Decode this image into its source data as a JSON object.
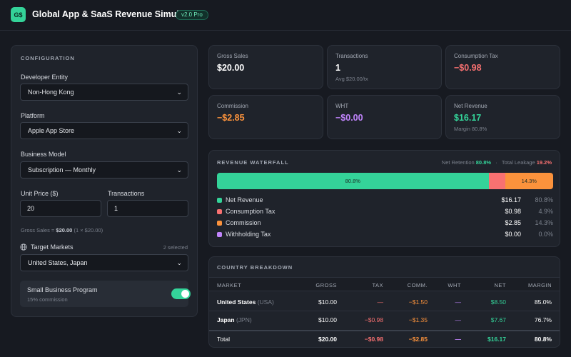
{
  "header": {
    "logo_text": "G$",
    "title": "Global App & SaaS Revenue Simulator",
    "version": "v2.0 Pro"
  },
  "config": {
    "section_title": "CONFIGURATION",
    "developer_entity_label": "Developer Entity",
    "developer_entity_value": "Non-Hong Kong",
    "platform_label": "Platform",
    "platform_value": "Apple App Store",
    "business_model_label": "Business Model",
    "business_model_value": "Subscription — Monthly",
    "unit_price_label": "Unit Price ($)",
    "unit_price_value": "20",
    "transactions_label": "Transactions",
    "transactions_value": "1",
    "gross_hint_prefix": "Gross Sales = ",
    "gross_hint_value": "$20.00",
    "gross_hint_suffix": " (1 × $20.00)",
    "target_markets_label": "Target Markets",
    "target_markets_count": "2 selected",
    "target_markets_value": "United States, Japan",
    "sbp_title": "Small Business Program",
    "sbp_subtitle": "15% commission",
    "sbp_enabled": true
  },
  "stats": [
    {
      "label": "Gross Sales",
      "value": "$20.00",
      "sub": "",
      "color": "#ffffff"
    },
    {
      "label": "Transactions",
      "value": "1",
      "sub": "Avg $20.00/tx",
      "color": "#ffffff"
    },
    {
      "label": "Consumption Tax",
      "value": "−$0.98",
      "sub": "",
      "color": "#f87171"
    },
    {
      "label": "Commission",
      "value": "−$2.85",
      "sub": "",
      "color": "#fb923c"
    },
    {
      "label": "WHT",
      "value": "−$0.00",
      "sub": "",
      "color": "#c084fc"
    },
    {
      "label": "Net Revenue",
      "value": "$16.17",
      "sub": "Margin 80.8%",
      "color": "#34d399"
    }
  ],
  "waterfall": {
    "section_title": "REVENUE WATERFALL",
    "net_retention_label": "Net Retention",
    "net_retention_value": "80.8%",
    "total_leakage_label": "Total Leakage",
    "total_leakage_value": "19.2%",
    "segments": [
      {
        "name": "Net Revenue",
        "pct": 80.8,
        "label": "80.8%",
        "color": "#34d399"
      },
      {
        "name": "Consumption Tax",
        "pct": 4.9,
        "label": "",
        "color": "#f87171"
      },
      {
        "name": "Commission",
        "pct": 14.3,
        "label": "14.3%",
        "color": "#fb923c"
      }
    ],
    "legend": [
      {
        "name": "Net Revenue",
        "value": "$16.17",
        "pct": "80.8%",
        "color": "#34d399"
      },
      {
        "name": "Consumption Tax",
        "value": "$0.98",
        "pct": "4.9%",
        "color": "#f87171"
      },
      {
        "name": "Commission",
        "value": "$2.85",
        "pct": "14.3%",
        "color": "#fb923c"
      },
      {
        "name": "Withholding Tax",
        "value": "$0.00",
        "pct": "0.0%",
        "color": "#c084fc"
      }
    ]
  },
  "country": {
    "section_title": "COUNTRY BREAKDOWN",
    "headers": {
      "market": "MARKET",
      "gross": "GROSS",
      "tax": "TAX",
      "comm": "COMM.",
      "wht": "WHT",
      "net": "NET",
      "margin": "MARGIN"
    },
    "rows": [
      {
        "market": "United States",
        "code": "(USA)",
        "gross": "$10.00",
        "tax": "—",
        "comm": "−$1.50",
        "wht": "—",
        "net": "$8.50",
        "margin": "85.0%"
      },
      {
        "market": "Japan",
        "code": "(JPN)",
        "gross": "$10.00",
        "tax": "−$0.98",
        "comm": "−$1.35",
        "wht": "—",
        "net": "$7.67",
        "margin": "76.7%"
      }
    ],
    "total": {
      "market": "Total",
      "gross": "$20.00",
      "tax": "−$0.98",
      "comm": "−$2.85",
      "wht": "—",
      "net": "$16.17",
      "margin": "80.8%"
    }
  }
}
